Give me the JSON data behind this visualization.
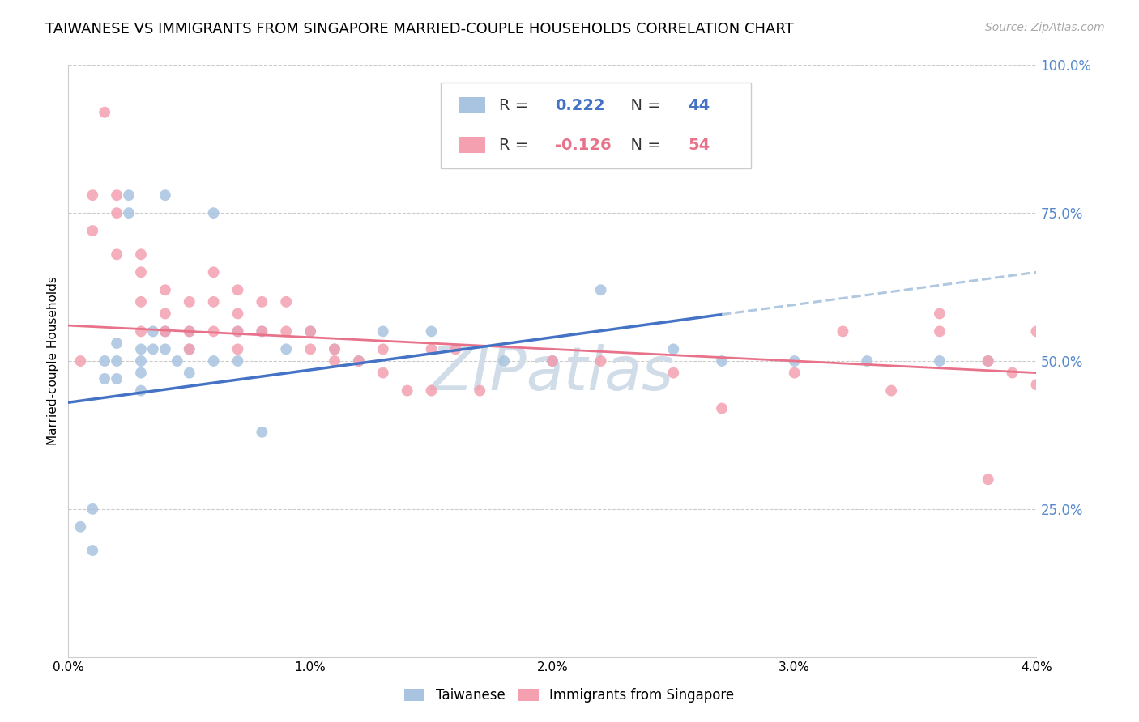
{
  "title": "TAIWANESE VS IMMIGRANTS FROM SINGAPORE MARRIED-COUPLE HOUSEHOLDS CORRELATION CHART",
  "source": "Source: ZipAtlas.com",
  "ylabel": "Married-couple Households",
  "xmin": 0.0,
  "xmax": 0.04,
  "ymin": 0.0,
  "ymax": 1.0,
  "R_taiwanese": 0.222,
  "N_taiwanese": 44,
  "R_singapore": -0.126,
  "N_singapore": 54,
  "color_taiwanese": "#a8c4e0",
  "color_singapore": "#f4a0b0",
  "trendline_taiwanese_solid_color": "#4472c4",
  "trendline_taiwanese_dashed_color": "#b0c8e0",
  "trendline_singapore_color": "#e8728a",
  "watermark_color": "#d0dce8",
  "title_fontsize": 13,
  "source_fontsize": 10,
  "axis_label_fontsize": 11,
  "ytick_color": "#5588cc",
  "ytick_fontsize": 12,
  "tw_intercept": 0.43,
  "tw_slope": 5.5,
  "sg_intercept": 0.56,
  "sg_slope": -2.0,
  "taiwanese_x": [
    0.0005,
    0.001,
    0.001,
    0.0015,
    0.0015,
    0.002,
    0.002,
    0.002,
    0.0025,
    0.0025,
    0.003,
    0.003,
    0.003,
    0.003,
    0.0035,
    0.0035,
    0.004,
    0.004,
    0.004,
    0.0045,
    0.005,
    0.005,
    0.005,
    0.006,
    0.006,
    0.007,
    0.007,
    0.008,
    0.008,
    0.009,
    0.01,
    0.011,
    0.012,
    0.013,
    0.015,
    0.018,
    0.02,
    0.022,
    0.025,
    0.027,
    0.03,
    0.033,
    0.036,
    0.038
  ],
  "taiwanese_y": [
    0.22,
    0.18,
    0.25,
    0.5,
    0.47,
    0.53,
    0.5,
    0.47,
    0.78,
    0.75,
    0.52,
    0.5,
    0.48,
    0.45,
    0.55,
    0.52,
    0.78,
    0.55,
    0.52,
    0.5,
    0.55,
    0.52,
    0.48,
    0.75,
    0.5,
    0.55,
    0.5,
    0.55,
    0.38,
    0.52,
    0.55,
    0.52,
    0.5,
    0.55,
    0.55,
    0.5,
    0.5,
    0.62,
    0.52,
    0.5,
    0.5,
    0.5,
    0.5,
    0.5
  ],
  "singapore_x": [
    0.0005,
    0.001,
    0.001,
    0.0015,
    0.002,
    0.002,
    0.002,
    0.003,
    0.003,
    0.003,
    0.003,
    0.004,
    0.004,
    0.004,
    0.005,
    0.005,
    0.005,
    0.006,
    0.006,
    0.006,
    0.007,
    0.007,
    0.007,
    0.007,
    0.008,
    0.008,
    0.009,
    0.009,
    0.01,
    0.01,
    0.011,
    0.011,
    0.012,
    0.013,
    0.013,
    0.014,
    0.015,
    0.015,
    0.016,
    0.017,
    0.02,
    0.022,
    0.025,
    0.027,
    0.03,
    0.032,
    0.034,
    0.036,
    0.036,
    0.038,
    0.038,
    0.039,
    0.04,
    0.04
  ],
  "singapore_y": [
    0.5,
    0.78,
    0.72,
    0.92,
    0.78,
    0.75,
    0.68,
    0.68,
    0.65,
    0.6,
    0.55,
    0.62,
    0.58,
    0.55,
    0.6,
    0.55,
    0.52,
    0.65,
    0.6,
    0.55,
    0.62,
    0.58,
    0.55,
    0.52,
    0.6,
    0.55,
    0.6,
    0.55,
    0.55,
    0.52,
    0.52,
    0.5,
    0.5,
    0.52,
    0.48,
    0.45,
    0.52,
    0.45,
    0.52,
    0.45,
    0.5,
    0.5,
    0.48,
    0.42,
    0.48,
    0.55,
    0.45,
    0.58,
    0.55,
    0.5,
    0.3,
    0.48,
    0.46,
    0.55
  ]
}
